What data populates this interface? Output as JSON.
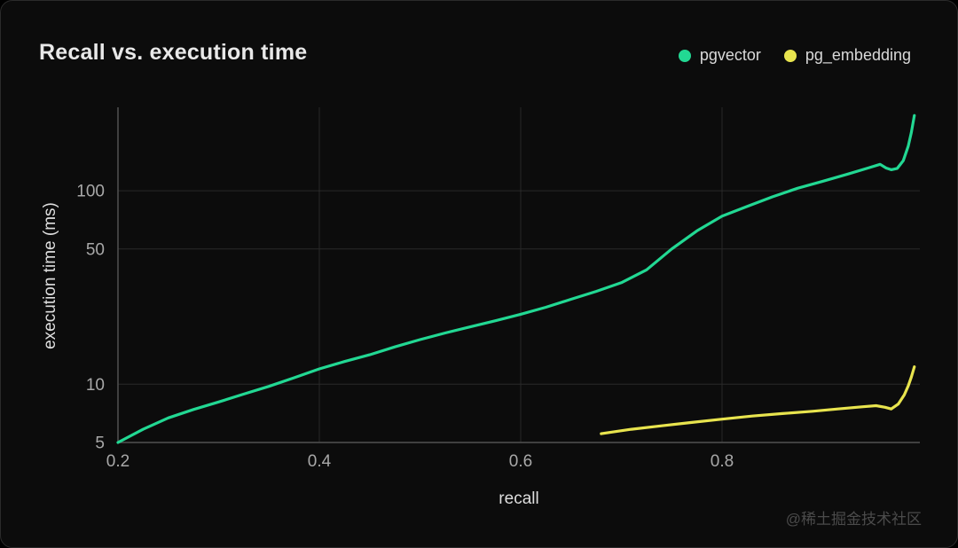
{
  "page": {
    "watermark": "@稀土掘金技术社区"
  },
  "chart_data": {
    "type": "line",
    "title": "Recall vs. execution time",
    "xlabel": "recall",
    "ylabel": "execution time (ms)",
    "yscale": "log",
    "background": "#0c0c0c",
    "grid": true,
    "legend_position": "top-right",
    "xlim": [
      0.2,
      0.9965
    ],
    "ylim": [
      5,
      270
    ],
    "xticks": [
      {
        "v": 0.2,
        "label": "0.2"
      },
      {
        "v": 0.4,
        "label": "0.4"
      },
      {
        "v": 0.6,
        "label": "0.6"
      },
      {
        "v": 0.8,
        "label": "0.8"
      }
    ],
    "yticks": [
      {
        "v": 5,
        "label": "5"
      },
      {
        "v": 10,
        "label": "10"
      },
      {
        "v": 50,
        "label": "50"
      },
      {
        "v": 100,
        "label": "100"
      }
    ],
    "series": [
      {
        "name": "pgvector",
        "color": "#22d893",
        "points": [
          [
            0.2,
            5.0
          ],
          [
            0.225,
            5.85
          ],
          [
            0.25,
            6.7
          ],
          [
            0.275,
            7.4
          ],
          [
            0.3,
            8.1
          ],
          [
            0.325,
            8.9
          ],
          [
            0.35,
            9.75
          ],
          [
            0.375,
            10.8
          ],
          [
            0.4,
            12.0
          ],
          [
            0.425,
            13.1
          ],
          [
            0.45,
            14.2
          ],
          [
            0.475,
            15.6
          ],
          [
            0.5,
            17.0
          ],
          [
            0.525,
            18.4
          ],
          [
            0.55,
            19.8
          ],
          [
            0.575,
            21.3
          ],
          [
            0.6,
            23.0
          ],
          [
            0.625,
            25.0
          ],
          [
            0.65,
            27.5
          ],
          [
            0.675,
            30.2
          ],
          [
            0.7,
            33.5
          ],
          [
            0.725,
            39.0
          ],
          [
            0.75,
            50.0
          ],
          [
            0.775,
            62.0
          ],
          [
            0.8,
            74.0
          ],
          [
            0.825,
            83.0
          ],
          [
            0.85,
            93.0
          ],
          [
            0.875,
            103.0
          ],
          [
            0.9,
            112.0
          ],
          [
            0.925,
            122.0
          ],
          [
            0.945,
            131.0
          ],
          [
            0.957,
            137.0
          ],
          [
            0.963,
            131.0
          ],
          [
            0.968,
            128.5
          ],
          [
            0.974,
            130.5
          ],
          [
            0.98,
            143.0
          ],
          [
            0.985,
            170.0
          ],
          [
            0.988,
            200.0
          ],
          [
            0.991,
            245.0
          ]
        ]
      },
      {
        "name": "pg_embedding",
        "color": "#e8e44e",
        "points": [
          [
            0.68,
            5.55
          ],
          [
            0.71,
            5.85
          ],
          [
            0.74,
            6.1
          ],
          [
            0.77,
            6.35
          ],
          [
            0.8,
            6.6
          ],
          [
            0.83,
            6.85
          ],
          [
            0.86,
            7.05
          ],
          [
            0.89,
            7.25
          ],
          [
            0.915,
            7.45
          ],
          [
            0.94,
            7.65
          ],
          [
            0.953,
            7.75
          ],
          [
            0.962,
            7.6
          ],
          [
            0.968,
            7.45
          ],
          [
            0.975,
            7.9
          ],
          [
            0.981,
            8.8
          ],
          [
            0.985,
            9.8
          ],
          [
            0.988,
            10.9
          ],
          [
            0.991,
            12.3
          ]
        ]
      }
    ]
  }
}
